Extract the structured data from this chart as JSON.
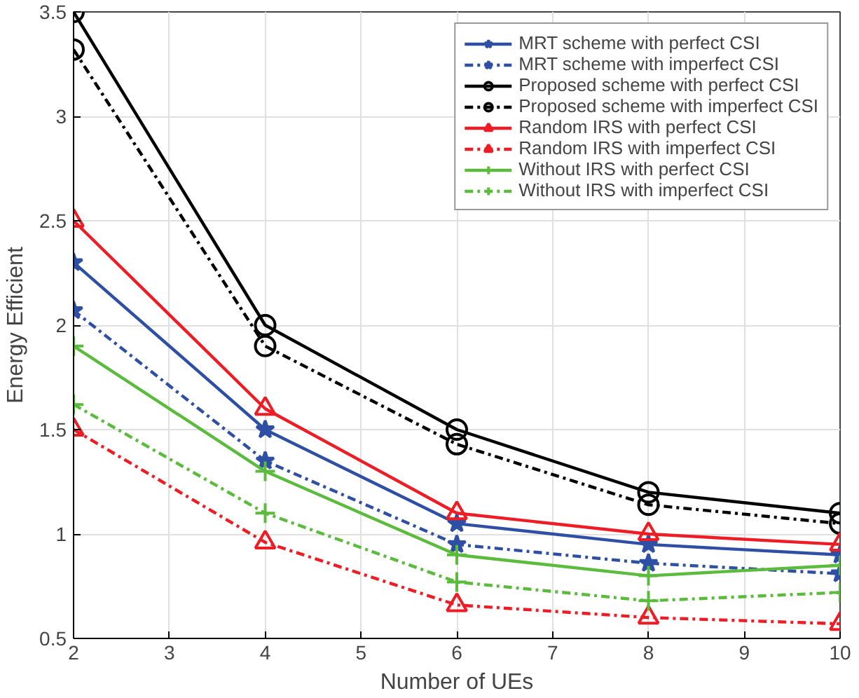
{
  "chart_data": {
    "type": "line",
    "xlabel": "Number of UEs",
    "ylabel": "Energy Efficient",
    "x": [
      2,
      4,
      6,
      8,
      10
    ],
    "series": [
      {
        "name": "MRT scheme with perfect CSI",
        "color": "#2e4fa3",
        "marker": "star",
        "line_style": "solid",
        "values": [
          2.3,
          1.5,
          1.05,
          0.95,
          0.9
        ]
      },
      {
        "name": "MRT scheme with imperfect CSI",
        "color": "#2e4fa3",
        "marker": "star",
        "line_style": "dashed",
        "values": [
          2.07,
          1.35,
          0.95,
          0.86,
          0.81
        ]
      },
      {
        "name": "Proposed scheme with perfect CSI",
        "color": "#000000",
        "marker": "circle",
        "line_style": "solid",
        "values": [
          3.5,
          2.0,
          1.5,
          1.2,
          1.1
        ]
      },
      {
        "name": "Proposed scheme with imperfect CSI",
        "color": "#000000",
        "marker": "circle",
        "line_style": "dashed",
        "values": [
          3.32,
          1.9,
          1.43,
          1.14,
          1.05
        ]
      },
      {
        "name": "Random IRS with perfect CSI",
        "color": "#ee1c24",
        "marker": "triangle",
        "line_style": "solid",
        "values": [
          2.5,
          1.6,
          1.1,
          1.0,
          0.95
        ]
      },
      {
        "name": "Random IRS with imperfect CSI",
        "color": "#ee1c24",
        "marker": "triangle",
        "line_style": "dashed",
        "values": [
          1.5,
          0.96,
          0.66,
          0.6,
          0.57
        ]
      },
      {
        "name": "Without IRS with perfect CSI",
        "color": "#5bbb3c",
        "marker": "cross",
        "line_style": "solid",
        "values": [
          1.9,
          1.3,
          0.9,
          0.8,
          0.85
        ]
      },
      {
        "name": "Without IRS with imperfect CSI",
        "color": "#5bbb3c",
        "marker": "cross",
        "line_style": "dashed",
        "values": [
          1.62,
          1.1,
          0.77,
          0.68,
          0.72
        ]
      }
    ],
    "xlim": [
      2,
      10
    ],
    "ylim": [
      0.5,
      3.5
    ],
    "xticks": [
      2,
      3,
      4,
      5,
      6,
      7,
      8,
      9,
      10
    ],
    "yticks": [
      0.5,
      1,
      1.5,
      2,
      2.5,
      3,
      3.5
    ],
    "grid": true,
    "legend": "top right"
  }
}
